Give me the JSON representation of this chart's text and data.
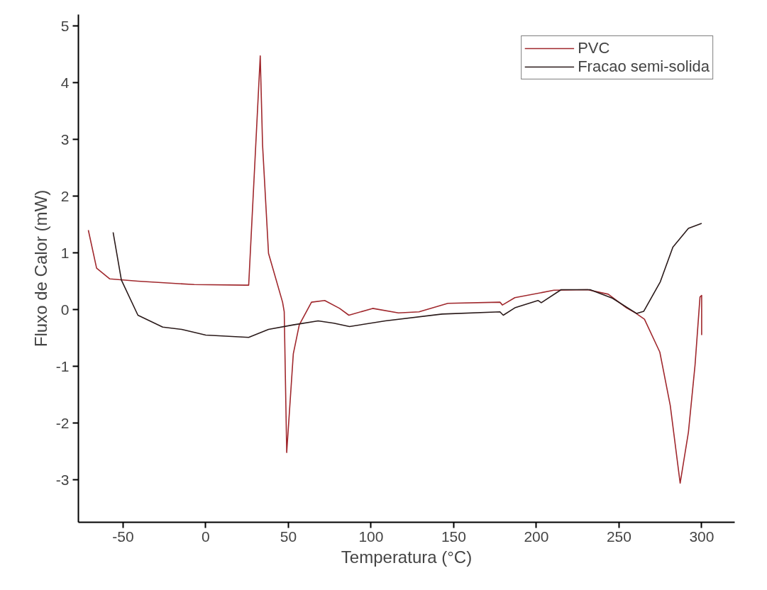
{
  "chart_data": {
    "type": "line",
    "xlabel": "Temperatura (°C)",
    "ylabel": "Fluxo de Calor (mW)",
    "xlim": [
      -77,
      320
    ],
    "ylim": [
      -3.75,
      5.2
    ],
    "xticks": [
      -50,
      0,
      50,
      100,
      150,
      200,
      250,
      300
    ],
    "yticks": [
      -3,
      -2,
      -1,
      0,
      1,
      2,
      3,
      4,
      5
    ],
    "grid": false,
    "legend": "top right",
    "line_style": "solid",
    "marker": "none",
    "series": [
      {
        "name": "PVC",
        "color": "#a0282d",
        "x": [
          -71,
          -66,
          -58,
          -41,
          -7,
          24,
          26,
          33,
          34.4,
          38,
          46.5,
          47.5,
          49,
          53,
          56.6,
          64,
          72,
          81,
          86.6,
          101,
          116.6,
          129,
          146.5,
          178,
          179.5,
          187,
          210.6,
          231,
          243.5,
          254.5,
          260,
          265.4,
          274.7,
          281,
          287,
          292,
          296,
          299,
          300,
          300
        ],
        "values": [
          1.4,
          0.73,
          0.54,
          0.5,
          0.44,
          0.43,
          0.43,
          4.47,
          2.9,
          0.99,
          0.13,
          -0.04,
          -2.52,
          -0.78,
          -0.27,
          0.13,
          0.16,
          0.02,
          -0.1,
          0.02,
          -0.06,
          -0.04,
          0.11,
          0.13,
          0.08,
          0.21,
          0.34,
          0.35,
          0.27,
          0.03,
          -0.06,
          -0.17,
          -0.75,
          -1.69,
          -3.06,
          -2.16,
          -0.98,
          0.22,
          0.25,
          -0.45
        ]
      },
      {
        "name": "Fracao semi-solida",
        "color": "#2a1a1a",
        "x": [
          -56,
          -51,
          -41,
          -26,
          -14.5,
          0,
          26,
          38,
          53,
          68,
          77.5,
          87,
          108.6,
          143,
          178,
          180,
          187,
          201,
          203,
          215,
          232.5,
          246,
          260.7,
          265,
          275,
          282.6,
          292,
          300
        ],
        "values": [
          1.36,
          0.52,
          -0.1,
          -0.31,
          -0.35,
          -0.45,
          -0.49,
          -0.35,
          -0.27,
          -0.2,
          -0.24,
          -0.3,
          -0.2,
          -0.08,
          -0.04,
          -0.1,
          0.03,
          0.16,
          0.12,
          0.35,
          0.35,
          0.2,
          -0.07,
          -0.03,
          0.49,
          1.1,
          1.43,
          1.52
        ]
      }
    ]
  }
}
